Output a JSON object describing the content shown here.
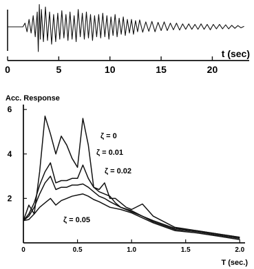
{
  "chart_data": [
    {
      "type": "line",
      "title": "",
      "xlabel": "t (sec)",
      "ylabel": "",
      "xlim": [
        0,
        23.5
      ],
      "ylim": [
        -1,
        1
      ],
      "xticks": [
        0,
        5,
        10,
        15,
        20
      ],
      "xtick_labels": [
        "0",
        "5",
        "10",
        "15",
        "20"
      ],
      "grid": false,
      "series": [
        {
          "x": [
            0,
            1.5,
            1.7,
            1.9,
            2.1,
            2.3,
            2.5,
            2.7,
            2.9,
            3.0,
            3.1,
            3.2,
            3.3,
            3.5,
            3.7,
            3.9,
            4.1,
            4.3,
            4.5,
            4.7,
            4.9,
            5.1,
            5.3,
            5.5,
            5.7,
            5.9,
            6.1,
            6.3,
            6.5,
            6.7,
            6.9,
            7.1,
            7.3,
            7.5,
            7.7,
            7.9,
            8.1,
            8.3,
            8.5,
            8.7,
            8.9,
            9.1,
            9.3,
            9.5,
            9.7,
            9.9,
            10.1,
            10.3,
            10.5,
            10.7,
            10.9,
            11.1,
            11.3,
            11.5,
            11.7,
            11.9,
            12.1,
            12.3,
            12.5,
            12.7,
            12.9,
            13.2,
            13.5,
            13.8,
            14.1,
            14.4,
            14.7,
            15.0,
            15.3,
            15.6,
            15.9,
            16.2,
            16.5,
            16.8,
            17.1,
            17.4,
            17.7,
            18.0,
            18.3,
            18.6,
            18.9,
            19.2,
            19.5,
            19.8,
            20.1,
            20.4,
            20.7,
            21.0,
            21.3,
            21.6,
            21.9,
            22.2,
            22.5,
            22.8,
            23.1
          ],
          "values": [
            0,
            0,
            0.15,
            -0.2,
            0.3,
            -0.25,
            0.45,
            -0.4,
            0.6,
            -1.0,
            0.9,
            -0.5,
            0.7,
            -0.6,
            0.8,
            -0.55,
            0.6,
            -0.7,
            0.5,
            -0.6,
            0.55,
            -0.5,
            0.65,
            -0.45,
            0.5,
            -0.55,
            0.6,
            -0.5,
            0.45,
            -0.6,
            0.7,
            -0.4,
            0.55,
            -0.5,
            0.6,
            -0.45,
            0.5,
            -0.55,
            0.45,
            -0.4,
            0.5,
            -0.45,
            0.55,
            -0.4,
            0.45,
            -0.5,
            0.4,
            -0.35,
            0.5,
            -0.4,
            0.35,
            -0.3,
            0.4,
            -0.35,
            0.3,
            -0.25,
            0.3,
            -0.3,
            0.25,
            -0.2,
            0.28,
            -0.22,
            0.2,
            -0.18,
            0.22,
            -0.2,
            0.18,
            -0.15,
            0.2,
            -0.15,
            0.15,
            -0.12,
            0.15,
            -0.13,
            0.12,
            -0.1,
            0.12,
            -0.1,
            0.1,
            -0.1,
            0.12,
            -0.1,
            0.1,
            -0.12,
            0.1,
            -0.08,
            0.1,
            -0.08,
            0.08,
            -0.08,
            0.06,
            -0.06,
            0.05,
            -0.04,
            0.02
          ]
        }
      ]
    },
    {
      "type": "line",
      "title": "",
      "xlabel": "T (sec.)",
      "ylabel": "Acc. Response",
      "xlim": [
        0,
        2.1
      ],
      "ylim": [
        0,
        6.5
      ],
      "xticks": [
        0,
        0.5,
        1.0,
        1.5,
        2.0
      ],
      "xtick_labels": [
        "0",
        "0.5",
        "1.0",
        "1.5",
        "2.0"
      ],
      "yticks": [
        2,
        4,
        6
      ],
      "ytick_labels": [
        "2",
        "4",
        "6"
      ],
      "grid": false,
      "annotations": [
        "ζ = 0",
        "ζ = 0.01",
        "ζ = 0.02",
        "ζ = 0.05"
      ],
      "series": [
        {
          "name": "ζ = 0",
          "x": [
            0,
            0.05,
            0.1,
            0.15,
            0.2,
            0.25,
            0.3,
            0.35,
            0.4,
            0.45,
            0.5,
            0.55,
            0.6,
            0.65,
            0.7,
            0.75,
            0.8,
            0.85,
            0.9,
            0.95,
            1.0,
            1.1,
            1.2,
            1.4,
            1.6,
            1.8,
            2.0
          ],
          "values": [
            1.0,
            1.7,
            1.3,
            3.2,
            5.7,
            4.9,
            4.0,
            4.8,
            4.4,
            3.8,
            3.4,
            5.6,
            4.4,
            2.5,
            2.4,
            2.7,
            2.0,
            2.0,
            1.8,
            1.6,
            1.5,
            1.75,
            1.2,
            0.7,
            0.55,
            0.4,
            0.25
          ]
        },
        {
          "name": "ζ = 0.01",
          "x": [
            0,
            0.05,
            0.1,
            0.15,
            0.2,
            0.25,
            0.3,
            0.35,
            0.4,
            0.45,
            0.5,
            0.55,
            0.6,
            0.65,
            0.7,
            0.75,
            0.8,
            0.85,
            0.9,
            0.95,
            1.0,
            1.2,
            1.4,
            1.6,
            1.8,
            2.0
          ],
          "values": [
            1.0,
            1.3,
            1.8,
            2.6,
            3.2,
            3.6,
            2.7,
            2.8,
            2.8,
            2.9,
            2.9,
            3.5,
            2.9,
            2.5,
            2.3,
            2.2,
            2.1,
            1.8,
            1.6,
            1.5,
            1.4,
            1.0,
            0.65,
            0.55,
            0.4,
            0.25
          ]
        },
        {
          "name": "ζ = 0.02",
          "x": [
            0,
            0.05,
            0.1,
            0.15,
            0.2,
            0.25,
            0.3,
            0.35,
            0.4,
            0.45,
            0.5,
            0.55,
            0.6,
            0.65,
            0.7,
            0.75,
            0.8,
            0.9,
            1.0,
            1.2,
            1.4,
            1.6,
            1.8,
            2.0
          ],
          "values": [
            1.0,
            1.2,
            1.6,
            2.2,
            2.7,
            3.0,
            2.4,
            2.5,
            2.5,
            2.6,
            2.6,
            2.65,
            2.5,
            2.3,
            2.1,
            2.0,
            1.85,
            1.6,
            1.45,
            0.95,
            0.6,
            0.5,
            0.35,
            0.2
          ]
        },
        {
          "name": "ζ = 0.05",
          "x": [
            0,
            0.05,
            0.1,
            0.15,
            0.2,
            0.25,
            0.3,
            0.35,
            0.4,
            0.45,
            0.5,
            0.55,
            0.6,
            0.65,
            0.7,
            0.8,
            0.9,
            1.0,
            1.2,
            1.4,
            1.6,
            1.8,
            2.0
          ],
          "values": [
            1.0,
            1.05,
            1.3,
            1.6,
            1.8,
            2.0,
            1.7,
            1.9,
            2.0,
            2.1,
            2.15,
            2.2,
            2.1,
            1.95,
            1.85,
            1.6,
            1.5,
            1.35,
            0.9,
            0.55,
            0.45,
            0.3,
            0.15
          ]
        }
      ]
    }
  ]
}
